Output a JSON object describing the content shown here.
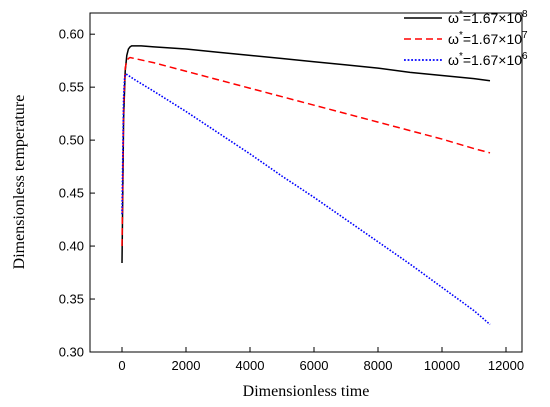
{
  "chart_data": {
    "type": "line",
    "title": "",
    "xlabel": "Dimensionless time",
    "ylabel": "Dimensionless temperature",
    "xlim": [
      -1000,
      12500
    ],
    "ylim": [
      0.3,
      0.62
    ],
    "xticks": [
      0,
      2000,
      4000,
      6000,
      8000,
      10000,
      12000
    ],
    "yticks": [
      0.3,
      0.35,
      0.4,
      0.45,
      0.5,
      0.55,
      0.6
    ],
    "ytick_labels": [
      "0.30",
      "0.35",
      "0.40",
      "0.45",
      "0.50",
      "0.55",
      "0.60"
    ],
    "grid": false,
    "legend_position": "top-right",
    "series": [
      {
        "name": "ω*=1.67×10^8",
        "label_main": "ω",
        "label_star": "*",
        "label_rest": "=1.67×10",
        "label_exp": "8",
        "color": "#000000",
        "dash": "solid",
        "x": [
          0,
          50,
          100,
          150,
          200,
          250,
          300,
          400,
          600,
          1000,
          2000,
          3000,
          4000,
          5000,
          6000,
          7000,
          8000,
          9000,
          10000,
          11000,
          11500
        ],
        "y": [
          0.384,
          0.52,
          0.565,
          0.58,
          0.586,
          0.588,
          0.589,
          0.589,
          0.589,
          0.588,
          0.586,
          0.583,
          0.58,
          0.577,
          0.574,
          0.571,
          0.568,
          0.564,
          0.561,
          0.558,
          0.556
        ]
      },
      {
        "name": "ω*=1.67×10^7",
        "label_main": "ω",
        "label_star": "*",
        "label_rest": "=1.67×10",
        "label_exp": "7",
        "color": "#ff0000",
        "dash": "dashed",
        "x": [
          0,
          50,
          100,
          150,
          200,
          250,
          400,
          1000,
          2000,
          3000,
          4000,
          5000,
          6000,
          7000,
          8000,
          9000,
          10000,
          11000,
          11500
        ],
        "y": [
          0.4,
          0.53,
          0.568,
          0.575,
          0.577,
          0.578,
          0.577,
          0.573,
          0.565,
          0.557,
          0.549,
          0.541,
          0.533,
          0.525,
          0.517,
          0.509,
          0.501,
          0.492,
          0.488
        ]
      },
      {
        "name": "ω*=1.67×10^6",
        "label_main": "ω",
        "label_star": "*",
        "label_rest": "=1.67×10",
        "label_exp": "6",
        "color": "#0000ff",
        "dash": "dotted",
        "x": [
          0,
          50,
          80,
          100,
          150,
          200,
          400,
          1000,
          2000,
          3000,
          4000,
          5000,
          6000,
          7000,
          8000,
          9000,
          10000,
          11000,
          11500
        ],
        "y": [
          0.43,
          0.54,
          0.558,
          0.562,
          0.562,
          0.561,
          0.557,
          0.546,
          0.527,
          0.507,
          0.487,
          0.466,
          0.446,
          0.425,
          0.404,
          0.383,
          0.361,
          0.339,
          0.326
        ]
      }
    ]
  }
}
